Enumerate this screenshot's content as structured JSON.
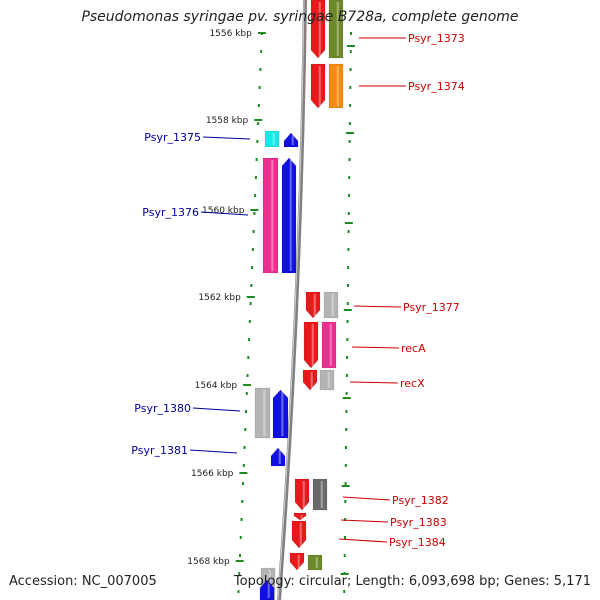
{
  "title": "Pseudomonas syringae pv. syringae B728a, complete genome",
  "footer": {
    "accession": "Accession: NC_007005",
    "info": "Topology: circular; Length: 6,093,698 bp; Genes: 5,171"
  },
  "colors": {
    "backbone": "#808080",
    "tick": "#1f8a1f",
    "forward_label": "#cc0000",
    "reverse_label": "#00009a",
    "red_gene": "#e8191a",
    "blue_gene": "#1010e0",
    "pink_gene": "#ea2f8e",
    "grey_gene": "#b4b4b4",
    "dark_grey_gene": "#6a6a6a",
    "olive_gene": "#6d8a2a",
    "orange_gene": "#f08c10",
    "cyan_gene": "#18e8e8"
  },
  "ruler_labels": [
    "1556 kbp",
    "1558 kbp",
    "1560 kbp",
    "1562 kbp",
    "1564 kbp",
    "1566 kbp",
    "1568 kbp"
  ],
  "gene_labels": [
    {
      "text": "Psyr_1373",
      "strand": "forward"
    },
    {
      "text": "Psyr_1374",
      "strand": "forward"
    },
    {
      "text": "Psyr_1375",
      "strand": "reverse"
    },
    {
      "text": "Psyr_1376",
      "strand": "reverse"
    },
    {
      "text": "Psyr_1377",
      "strand": "forward"
    },
    {
      "text": "recA",
      "strand": "forward"
    },
    {
      "text": "recX",
      "strand": "forward"
    },
    {
      "text": "Psyr_1380",
      "strand": "reverse"
    },
    {
      "text": "Psyr_1381",
      "strand": "reverse"
    },
    {
      "text": "Psyr_1382",
      "strand": "forward"
    },
    {
      "text": "Psyr_1383",
      "strand": "forward"
    },
    {
      "text": "Psyr_1384",
      "strand": "forward"
    }
  ]
}
